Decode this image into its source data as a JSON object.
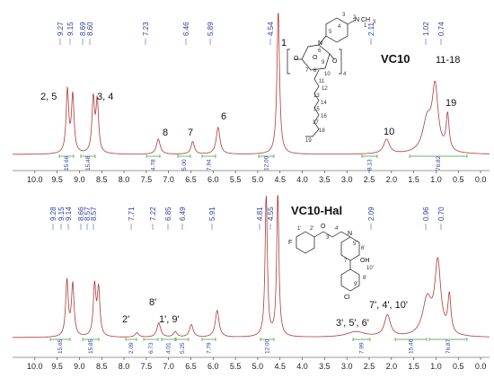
{
  "chart_data": [
    {
      "type": "line",
      "title": "VC10",
      "xlabel": "",
      "xlim": [
        10.5,
        -0.2
      ],
      "x_ticks": [
        "10.0",
        "9.5",
        "9.0",
        "8.5",
        "8.0",
        "7.5",
        "7.0",
        "6.5",
        "6.0",
        "5.5",
        "5.0",
        "4.5",
        "4.0",
        "3.5",
        "3.0",
        "2.5",
        "2.0",
        "1.5",
        "1.0",
        "0.5",
        "0.0"
      ],
      "peaks": [
        {
          "x": 9.27,
          "h": 0.7,
          "w": 0.035
        },
        {
          "x": 9.15,
          "h": 0.64,
          "w": 0.035
        },
        {
          "x": 8.69,
          "h": 0.6,
          "w": 0.035
        },
        {
          "x": 8.6,
          "h": 0.57,
          "w": 0.035
        },
        {
          "x": 7.23,
          "h": 0.17,
          "w": 0.05
        },
        {
          "x": 6.46,
          "h": 0.14,
          "w": 0.045
        },
        {
          "x": 5.89,
          "h": 0.3,
          "w": 0.05
        },
        {
          "x": 4.54,
          "h": 1.6,
          "w": 0.035
        },
        {
          "x": 2.11,
          "h": 0.16,
          "w": 0.08
        },
        {
          "x": 1.2,
          "h": 0.35,
          "w": 0.12
        },
        {
          "x": 1.02,
          "h": 0.7,
          "w": 0.08
        },
        {
          "x": 0.74,
          "h": 0.4,
          "w": 0.04
        }
      ],
      "peak_labels": [
        "9.27",
        "9.15",
        "8.69",
        "8.60",
        "7.23",
        "6.46",
        "5.89",
        "4.54",
        "2.11",
        "1.02",
        "0.74"
      ],
      "integrals": [
        "15.66",
        "15.48",
        "4.78",
        "5.00",
        "7.94",
        "12.00",
        "8.13",
        "76.82"
      ],
      "annotations": [
        "2, 5",
        "3, 4",
        "8",
        "7",
        "6",
        "1",
        "10",
        "11-18",
        "19"
      ],
      "structure_atoms": [
        "O",
        "O",
        "O",
        "N",
        "N",
        "CH",
        "3",
        "4"
      ],
      "structure_numbers": [
        "1",
        "2",
        "3",
        "4",
        "5",
        "6",
        "7",
        "8",
        "9",
        "10",
        "11",
        "12",
        "13",
        "14",
        "15",
        "16",
        "17",
        "18",
        "19"
      ]
    },
    {
      "type": "line",
      "title": "VC10-Hal",
      "xlabel": "",
      "xlim": [
        10.5,
        -0.2
      ],
      "x_ticks": [
        "10.0",
        "9.5",
        "9.0",
        "8.5",
        "8.0",
        "7.5",
        "7.0",
        "6.5",
        "6.0",
        "5.5",
        "5.0",
        "4.5",
        "4.0",
        "3.5",
        "3.0",
        "2.5",
        "2.0",
        "1.5",
        "1.0",
        "0.5",
        "0.0"
      ],
      "peaks": [
        {
          "x": 9.28,
          "h": 0.62,
          "w": 0.035
        },
        {
          "x": 9.15,
          "h": 0.58,
          "w": 0.035
        },
        {
          "x": 8.66,
          "h": 0.56,
          "w": 0.035
        },
        {
          "x": 8.57,
          "h": 0.52,
          "w": 0.035
        },
        {
          "x": 7.71,
          "h": 0.05,
          "w": 0.05
        },
        {
          "x": 7.22,
          "h": 0.16,
          "w": 0.05
        },
        {
          "x": 6.85,
          "h": 0.06,
          "w": 0.05
        },
        {
          "x": 6.49,
          "h": 0.14,
          "w": 0.05
        },
        {
          "x": 5.91,
          "h": 0.3,
          "w": 0.05
        },
        {
          "x": 4.81,
          "h": 1.6,
          "w": 0.03
        },
        {
          "x": 4.55,
          "h": 1.6,
          "w": 0.03
        },
        {
          "x": 2.8,
          "h": 0.06,
          "w": 0.25
        },
        {
          "x": 2.09,
          "h": 0.24,
          "w": 0.08
        },
        {
          "x": 1.2,
          "h": 0.4,
          "w": 0.12
        },
        {
          "x": 0.96,
          "h": 0.8,
          "w": 0.08
        },
        {
          "x": 0.7,
          "h": 0.42,
          "w": 0.04
        }
      ],
      "peak_labels": [
        "9.28",
        "9.15",
        "9.14",
        "8.66",
        "8.57",
        "8.57",
        "7.71",
        "7.22",
        "6.85",
        "6.49",
        "5.91",
        "4.81",
        "4.55",
        "2.09",
        "0.96",
        "0.70"
      ],
      "integrals": [
        "15.65",
        "15.85",
        "2.09",
        "6.73",
        "4.01",
        "5.25",
        "7.79",
        "12.00",
        "7.99",
        "15.46",
        "76.87"
      ],
      "annotations": [
        "8'",
        "2'",
        "1', 9'",
        "3', 5', 6'",
        "7', 4', 10'"
      ],
      "structure_atoms": [
        "F",
        "O",
        "N",
        "OH",
        "Cl"
      ],
      "structure_numbers": [
        "1'",
        "2'",
        "3'",
        "4'",
        "5'",
        "6'",
        "7'",
        "8'",
        "9'",
        "10'"
      ]
    }
  ]
}
